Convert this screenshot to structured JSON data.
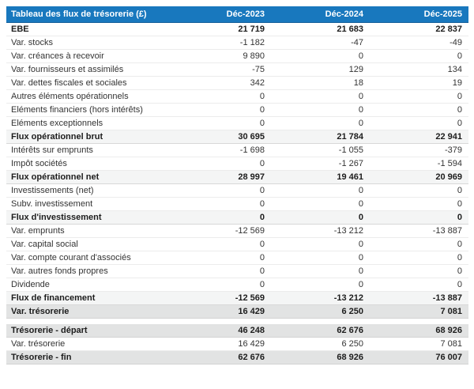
{
  "table": {
    "title": "Tableau des flux de trésorerie (£)",
    "columns": [
      "Déc-2023",
      "Déc-2024",
      "Déc-2025"
    ],
    "accent_color": "#1878be",
    "highlight_row_color": "#e2e3e3",
    "subtotal_row_color": "#f4f5f5",
    "sections": [
      {
        "rows": [
          {
            "label": "EBE",
            "style": "bold",
            "values": [
              "21 719",
              "21 683",
              "22 837"
            ]
          },
          {
            "label": "Var. stocks",
            "style": "normal",
            "values": [
              "-1 182",
              "-47",
              "-49"
            ]
          },
          {
            "label": "Var. créances à recevoir",
            "style": "normal",
            "values": [
              "9 890",
              "0",
              "0"
            ]
          },
          {
            "label": "Var. fournisseurs et assimilés",
            "style": "normal",
            "values": [
              "-75",
              "129",
              "134"
            ]
          },
          {
            "label": "Var. dettes fiscales et sociales",
            "style": "normal",
            "values": [
              "342",
              "18",
              "19"
            ]
          },
          {
            "label": "Autres éléments opérationnels",
            "style": "normal",
            "values": [
              "0",
              "0",
              "0"
            ]
          },
          {
            "label": "Eléments financiers (hors intérêts)",
            "style": "normal",
            "values": [
              "0",
              "0",
              "0"
            ]
          },
          {
            "label": "Eléments exceptionnels",
            "style": "normal",
            "values": [
              "0",
              "0",
              "0"
            ]
          },
          {
            "label": "Flux opérationnel brut",
            "style": "subtotal",
            "values": [
              "30 695",
              "21 784",
              "22 941"
            ]
          },
          {
            "label": "Intérêts sur emprunts",
            "style": "normal",
            "values": [
              "-1 698",
              "-1 055",
              "-379"
            ]
          },
          {
            "label": "Impôt sociétés",
            "style": "normal",
            "values": [
              "0",
              "-1 267",
              "-1 594"
            ]
          },
          {
            "label": "Flux opérationnel net",
            "style": "subtotal",
            "values": [
              "28 997",
              "19 461",
              "20 969"
            ]
          },
          {
            "label": "Investissements (net)",
            "style": "normal",
            "values": [
              "0",
              "0",
              "0"
            ]
          },
          {
            "label": "Subv. investissement",
            "style": "normal",
            "values": [
              "0",
              "0",
              "0"
            ]
          },
          {
            "label": "Flux d'investissement",
            "style": "subtotal",
            "values": [
              "0",
              "0",
              "0"
            ]
          },
          {
            "label": "Var. emprunts",
            "style": "normal",
            "values": [
              "-12 569",
              "-13 212",
              "-13 887"
            ]
          },
          {
            "label": "Var. capital social",
            "style": "normal",
            "values": [
              "0",
              "0",
              "0"
            ]
          },
          {
            "label": "Var. compte courant d'associés",
            "style": "normal",
            "values": [
              "0",
              "0",
              "0"
            ]
          },
          {
            "label": "Var. autres fonds propres",
            "style": "normal",
            "values": [
              "0",
              "0",
              "0"
            ]
          },
          {
            "label": "Dividende",
            "style": "normal",
            "values": [
              "0",
              "0",
              "0"
            ]
          },
          {
            "label": "Flux de financement",
            "style": "subtotal",
            "values": [
              "-12 569",
              "-13 212",
              "-13 887"
            ]
          },
          {
            "label": "Var. trésorerie",
            "style": "highlight",
            "values": [
              "16 429",
              "6 250",
              "7 081"
            ]
          }
        ]
      },
      {
        "rows": [
          {
            "label": "Trésorerie - départ",
            "style": "highlight",
            "values": [
              "46 248",
              "62 676",
              "68 926"
            ]
          },
          {
            "label": "Var. trésorerie",
            "style": "normal",
            "values": [
              "16 429",
              "6 250",
              "7 081"
            ]
          },
          {
            "label": "Trésorerie - fin",
            "style": "highlight",
            "values": [
              "62 676",
              "68 926",
              "76 007"
            ]
          }
        ]
      }
    ]
  }
}
